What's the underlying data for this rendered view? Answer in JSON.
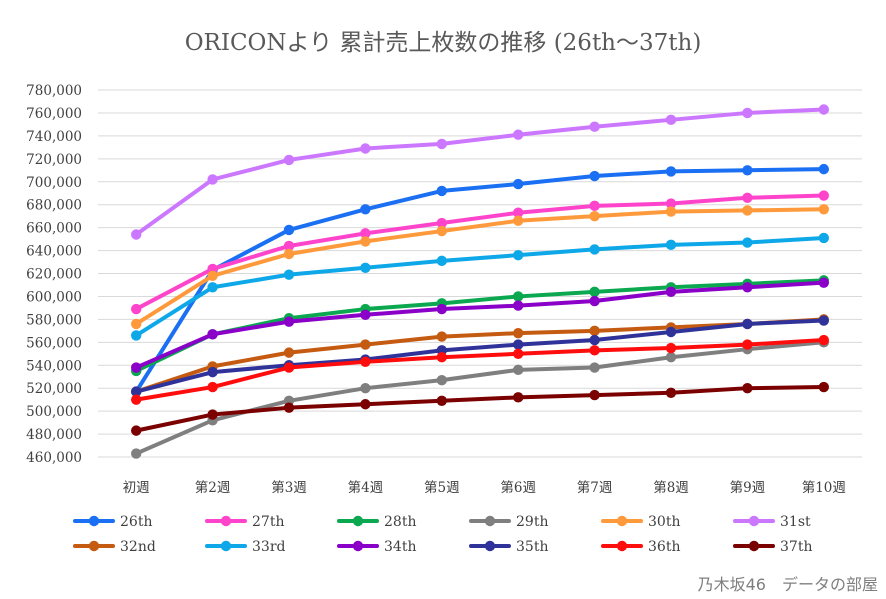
{
  "watermark": "乃木坂46　データの部屋",
  "chart_data": {
    "type": "line",
    "title": "ORICONより 累計売上枚数の推移 (26th～37th)",
    "xlabel": "",
    "ylabel": "",
    "ylim": [
      460000,
      780000
    ],
    "ytick_step": 20000,
    "yticks": [
      "460,000",
      "480,000",
      "500,000",
      "520,000",
      "540,000",
      "560,000",
      "580,000",
      "600,000",
      "620,000",
      "640,000",
      "660,000",
      "680,000",
      "700,000",
      "720,000",
      "740,000",
      "760,000",
      "780,000"
    ],
    "grid": true,
    "legend_position": "bottom",
    "categories": [
      "初週",
      "第2週",
      "第3週",
      "第4週",
      "第5週",
      "第6週",
      "第7週",
      "第8週",
      "第9週",
      "第10週"
    ],
    "series": [
      {
        "name": "26th",
        "color": "#1a6ff2",
        "values": [
          517000,
          623000,
          658000,
          676000,
          692000,
          698000,
          705000,
          709000,
          710000,
          711000
        ]
      },
      {
        "name": "27th",
        "color": "#ff44cc",
        "values": [
          589000,
          624000,
          644000,
          655000,
          664000,
          673000,
          679000,
          681000,
          686000,
          688000
        ]
      },
      {
        "name": "28th",
        "color": "#0ba850",
        "values": [
          535000,
          567000,
          581000,
          589000,
          594000,
          600000,
          604000,
          608000,
          611000,
          614000
        ]
      },
      {
        "name": "29th",
        "color": "#7f7f7f",
        "values": [
          463000,
          492000,
          509000,
          520000,
          527000,
          536000,
          538000,
          547000,
          554000,
          560000
        ]
      },
      {
        "name": "30th",
        "color": "#ff9a3c",
        "values": [
          576000,
          618000,
          637000,
          648000,
          657000,
          666000,
          670000,
          674000,
          675000,
          676000
        ]
      },
      {
        "name": "31st",
        "color": "#cc77ff",
        "values": [
          654000,
          702000,
          719000,
          729000,
          733000,
          741000,
          748000,
          754000,
          760000,
          763000
        ]
      },
      {
        "name": "32nd",
        "color": "#c55a11",
        "values": [
          517000,
          539000,
          551000,
          558000,
          565000,
          568000,
          570000,
          573000,
          576000,
          580000
        ]
      },
      {
        "name": "33rd",
        "color": "#0ea8e8",
        "values": [
          566000,
          608000,
          619000,
          625000,
          631000,
          636000,
          641000,
          645000,
          647000,
          651000
        ]
      },
      {
        "name": "34th",
        "color": "#8a00c8",
        "values": [
          538000,
          567000,
          578000,
          584000,
          589000,
          592000,
          596000,
          604000,
          608000,
          612000
        ]
      },
      {
        "name": "35th",
        "color": "#2f3399",
        "values": [
          517000,
          534000,
          540000,
          545000,
          553000,
          558000,
          562000,
          569000,
          576000,
          579000
        ]
      },
      {
        "name": "36th",
        "color": "#ff0d0d",
        "values": [
          510000,
          521000,
          538000,
          543000,
          547000,
          550000,
          553000,
          555000,
          558000,
          562000
        ]
      },
      {
        "name": "37th",
        "color": "#7b0000",
        "values": [
          483000,
          497000,
          503000,
          506000,
          509000,
          512000,
          514000,
          516000,
          520000,
          521000
        ]
      }
    ]
  }
}
